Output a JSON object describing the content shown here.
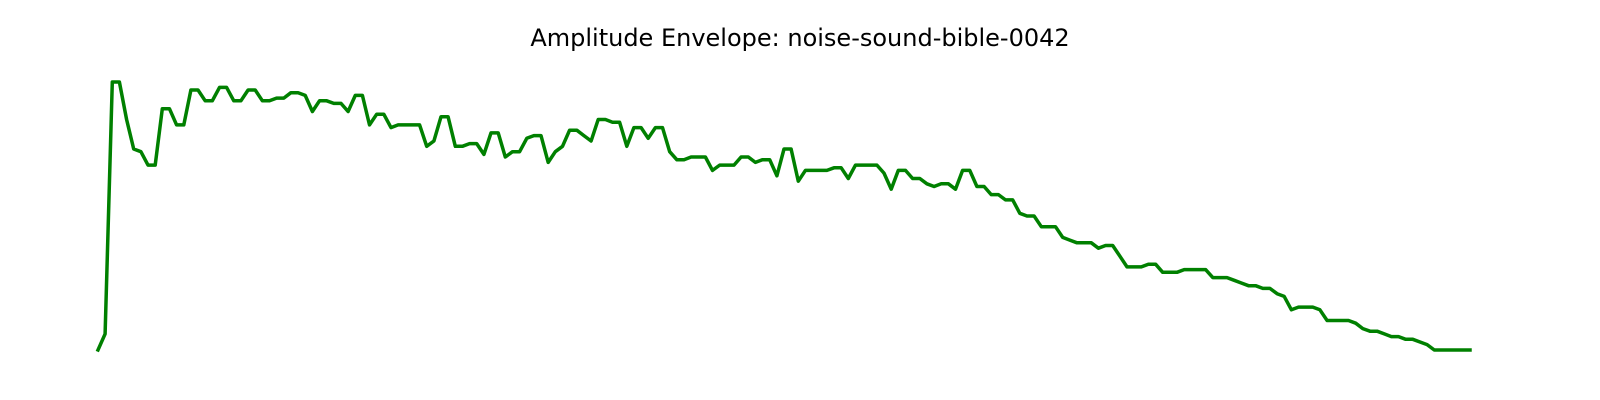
{
  "chart_data": {
    "type": "line",
    "title": "Amplitude Envelope: noise-sound-bible-0042",
    "xlabel": "",
    "ylabel": "",
    "grid": false,
    "axes_visible": false,
    "line_color": "#008000",
    "ylim": [
      0,
      1
    ],
    "values": [
      0.0,
      0.06,
      1.0,
      1.0,
      0.86,
      0.75,
      0.74,
      0.69,
      0.69,
      0.9,
      0.9,
      0.84,
      0.84,
      0.97,
      0.97,
      0.93,
      0.93,
      0.98,
      0.98,
      0.93,
      0.93,
      0.97,
      0.97,
      0.93,
      0.93,
      0.94,
      0.94,
      0.96,
      0.96,
      0.95,
      0.89,
      0.93,
      0.93,
      0.92,
      0.92,
      0.89,
      0.95,
      0.95,
      0.84,
      0.88,
      0.88,
      0.83,
      0.84,
      0.84,
      0.84,
      0.84,
      0.76,
      0.78,
      0.87,
      0.87,
      0.76,
      0.76,
      0.77,
      0.77,
      0.73,
      0.81,
      0.81,
      0.72,
      0.74,
      0.74,
      0.79,
      0.8,
      0.8,
      0.7,
      0.74,
      0.76,
      0.82,
      0.82,
      0.8,
      0.78,
      0.86,
      0.86,
      0.85,
      0.85,
      0.76,
      0.83,
      0.83,
      0.79,
      0.83,
      0.83,
      0.74,
      0.71,
      0.71,
      0.72,
      0.72,
      0.72,
      0.67,
      0.69,
      0.69,
      0.69,
      0.72,
      0.72,
      0.7,
      0.71,
      0.71,
      0.65,
      0.75,
      0.75,
      0.63,
      0.67,
      0.67,
      0.67,
      0.67,
      0.68,
      0.68,
      0.64,
      0.69,
      0.69,
      0.69,
      0.69,
      0.66,
      0.6,
      0.67,
      0.67,
      0.64,
      0.64,
      0.62,
      0.61,
      0.62,
      0.62,
      0.6,
      0.67,
      0.67,
      0.61,
      0.61,
      0.58,
      0.58,
      0.56,
      0.56,
      0.51,
      0.5,
      0.5,
      0.46,
      0.46,
      0.46,
      0.42,
      0.41,
      0.4,
      0.4,
      0.4,
      0.38,
      0.39,
      0.39,
      0.35,
      0.31,
      0.31,
      0.31,
      0.32,
      0.32,
      0.29,
      0.29,
      0.29,
      0.3,
      0.3,
      0.3,
      0.3,
      0.27,
      0.27,
      0.27,
      0.26,
      0.25,
      0.24,
      0.24,
      0.23,
      0.23,
      0.21,
      0.2,
      0.15,
      0.16,
      0.16,
      0.16,
      0.15,
      0.11,
      0.11,
      0.11,
      0.11,
      0.1,
      0.08,
      0.07,
      0.07,
      0.06,
      0.05,
      0.05,
      0.04,
      0.04,
      0.03,
      0.02,
      0.0,
      0.0,
      0.0,
      0.0,
      0.0,
      0.0
    ]
  }
}
